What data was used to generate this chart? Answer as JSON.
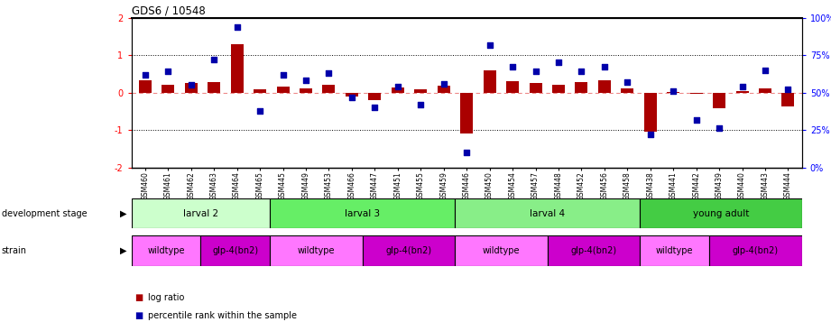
{
  "title": "GDS6 / 10548",
  "samples": [
    "GSM460",
    "GSM461",
    "GSM462",
    "GSM463",
    "GSM464",
    "GSM465",
    "GSM445",
    "GSM449",
    "GSM453",
    "GSM466",
    "GSM447",
    "GSM451",
    "GSM455",
    "GSM459",
    "GSM446",
    "GSM450",
    "GSM454",
    "GSM457",
    "GSM448",
    "GSM452",
    "GSM456",
    "GSM458",
    "GSM438",
    "GSM441",
    "GSM442",
    "GSM439",
    "GSM440",
    "GSM443",
    "GSM444"
  ],
  "log_ratio": [
    0.32,
    0.2,
    0.25,
    0.28,
    1.3,
    0.08,
    0.15,
    0.12,
    0.22,
    -0.1,
    -0.2,
    0.14,
    0.08,
    0.18,
    -1.1,
    0.6,
    0.3,
    0.25,
    0.2,
    0.28,
    0.32,
    0.12,
    -1.05,
    0.02,
    -0.04,
    -0.42,
    0.04,
    0.1,
    -0.38
  ],
  "percentile": [
    62,
    64,
    55,
    72,
    94,
    38,
    62,
    58,
    63,
    47,
    40,
    54,
    42,
    56,
    10,
    82,
    67,
    64,
    70,
    64,
    67,
    57,
    22,
    51,
    32,
    26,
    54,
    65,
    52
  ],
  "development_stages": [
    {
      "label": "larval 2",
      "start": 0,
      "end": 6,
      "color": "#ccffcc"
    },
    {
      "label": "larval 3",
      "start": 6,
      "end": 14,
      "color": "#66ee66"
    },
    {
      "label": "larval 4",
      "start": 14,
      "end": 22,
      "color": "#88ee88"
    },
    {
      "label": "young adult",
      "start": 22,
      "end": 29,
      "color": "#44cc44"
    }
  ],
  "strains": [
    {
      "label": "wildtype",
      "start": 0,
      "end": 3,
      "color": "#ff77ff"
    },
    {
      "label": "glp-4(bn2)",
      "start": 3,
      "end": 6,
      "color": "#cc00cc"
    },
    {
      "label": "wildtype",
      "start": 6,
      "end": 10,
      "color": "#ff77ff"
    },
    {
      "label": "glp-4(bn2)",
      "start": 10,
      "end": 14,
      "color": "#cc00cc"
    },
    {
      "label": "wildtype",
      "start": 14,
      "end": 18,
      "color": "#ff77ff"
    },
    {
      "label": "glp-4(bn2)",
      "start": 18,
      "end": 22,
      "color": "#cc00cc"
    },
    {
      "label": "wildtype",
      "start": 22,
      "end": 25,
      "color": "#ff77ff"
    },
    {
      "label": "glp-4(bn2)",
      "start": 25,
      "end": 29,
      "color": "#cc00cc"
    }
  ],
  "bar_color": "#aa0000",
  "dot_color": "#0000aa",
  "ylim_left": [
    -2,
    2
  ],
  "ylim_right": [
    0,
    100
  ],
  "yticks_left": [
    -2,
    -1,
    0,
    1,
    2
  ],
  "yticks_right": [
    0,
    25,
    50,
    75,
    100
  ],
  "ytick_labels_right": [
    "0%",
    "25%",
    "50%",
    "75%",
    "100%"
  ],
  "dotted_lines": [
    -1.0,
    1.0
  ],
  "zero_line_color": "#ee8888",
  "background_color": "#ffffff"
}
